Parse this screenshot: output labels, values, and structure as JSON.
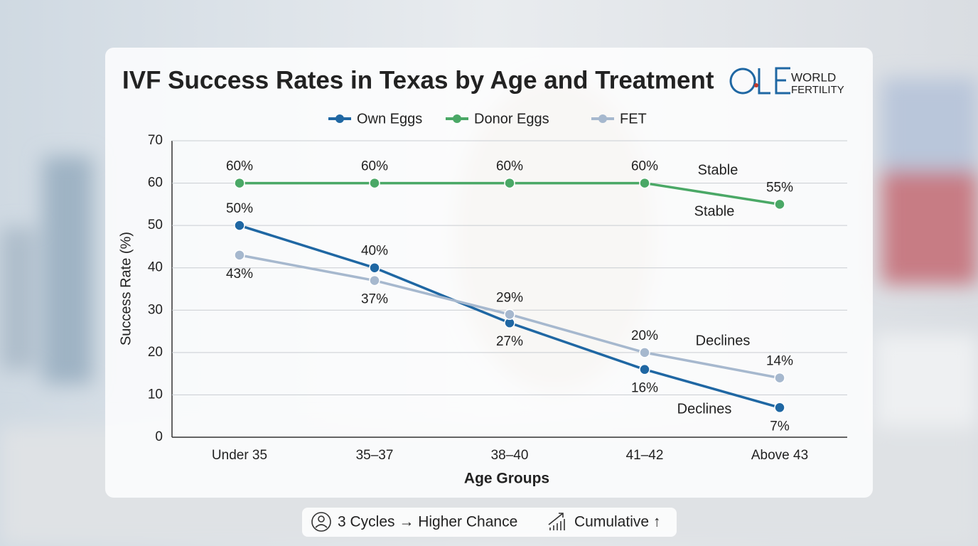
{
  "chart_data": {
    "type": "line",
    "title": "IVF Success Rates in Texas by Age and Treatment",
    "logo": [
      "WORLD",
      "FERTILITY"
    ],
    "x_label": "Age Groups",
    "y_label": "Success Rate (%)",
    "categories": [
      "Under 35",
      "35–37",
      "38–40",
      "41–42",
      "Above 43"
    ],
    "series": [
      {
        "name": "Own Eggs",
        "color": "#1f67a3",
        "values": [
          50,
          40,
          27,
          16,
          7
        ],
        "value_labels": [
          "50%",
          "40%",
          "27%",
          "16%",
          "7%"
        ]
      },
      {
        "name": "Donor Eggs",
        "color": "#4aa866",
        "values": [
          60,
          60,
          60,
          60,
          55
        ],
        "value_labels": [
          "60%",
          "60%",
          "60%",
          "60%",
          "55%"
        ]
      },
      {
        "name": "FET",
        "color": "#a6b8ce",
        "values": [
          43,
          37,
          29,
          20,
          14
        ],
        "value_labels": [
          "43%",
          "37%",
          "29%",
          "20%",
          "14%"
        ]
      }
    ],
    "annotations": [
      "Stable",
      "Stable",
      "Declines",
      "Declines"
    ],
    "ylim": [
      0,
      70
    ],
    "yticks": [
      0,
      10,
      20,
      30,
      40,
      50,
      60,
      70
    ],
    "grid": true,
    "footer": [
      "3 Cycles → Higher Chance",
      "Cumulative ↑"
    ]
  }
}
